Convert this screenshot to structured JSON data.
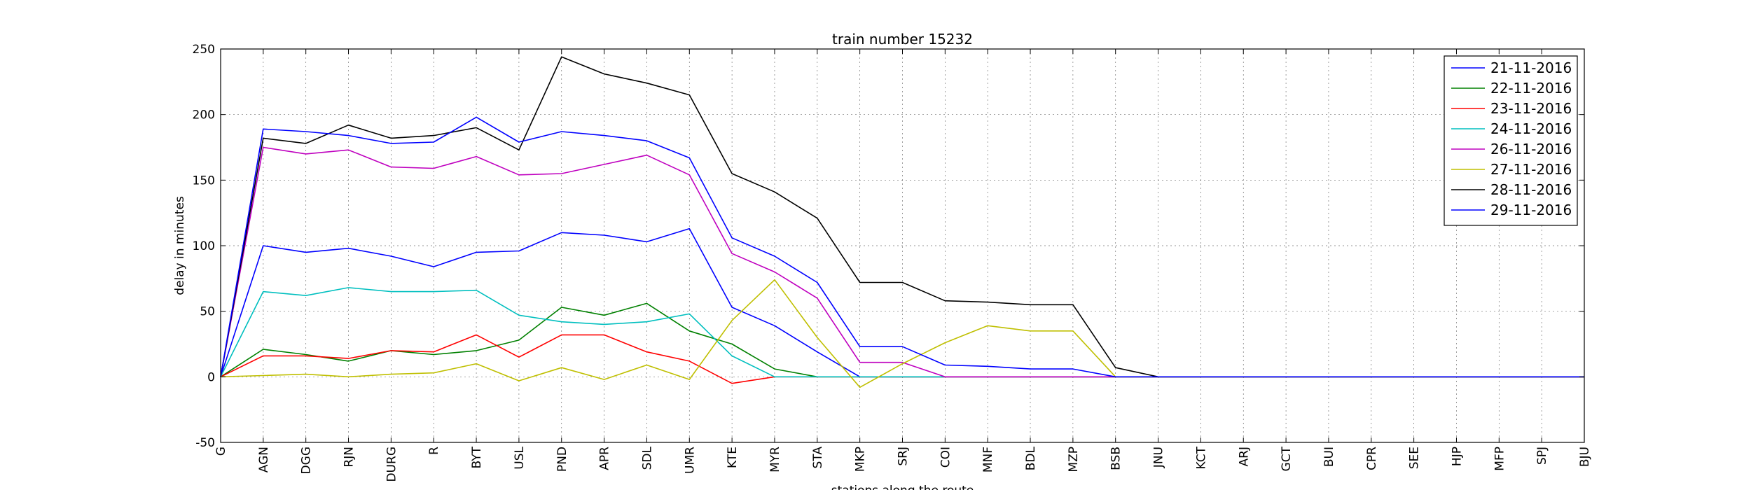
{
  "chart_data": {
    "type": "line",
    "title": "train number 15232",
    "xlabel": "stations along the route",
    "ylabel": "delay in minutes",
    "ylim": [
      -50,
      250
    ],
    "yticks": [
      -50,
      0,
      50,
      100,
      150,
      200,
      250
    ],
    "grid": true,
    "legend_position": "top-right",
    "categories": [
      "G",
      "AGN",
      "DGG",
      "RJN",
      "DURG",
      "R",
      "BYT",
      "USL",
      "PND",
      "APR",
      "SDL",
      "UMR",
      "KTE",
      "MYR",
      "STA",
      "MKP",
      "SRJ",
      "COI",
      "MNF",
      "BDL",
      "MZP",
      "BSB",
      "JNU",
      "KCT",
      "ARJ",
      "GCT",
      "BUI",
      "CPR",
      "SEE",
      "HJP",
      "MFP",
      "SPJ",
      "BJU"
    ],
    "series": [
      {
        "name": "21-11-2016",
        "color": "#0000ff",
        "values": [
          0,
          100,
          95,
          98,
          92,
          84,
          95,
          96,
          110,
          108,
          103,
          113,
          53,
          39,
          19,
          0,
          0,
          0,
          0,
          0,
          0,
          0,
          0,
          0,
          0,
          0,
          0,
          0,
          0,
          0,
          0,
          0,
          0
        ]
      },
      {
        "name": "22-11-2016",
        "color": "#008000",
        "values": [
          0,
          21,
          17,
          12,
          20,
          17,
          20,
          28,
          53,
          47,
          56,
          35,
          25,
          6,
          0,
          0,
          0,
          0,
          0,
          0,
          0,
          0,
          0,
          0,
          0,
          0,
          0,
          0,
          0,
          0,
          0,
          0,
          0
        ]
      },
      {
        "name": "23-11-2016",
        "color": "#ff0000",
        "values": [
          0,
          16,
          16,
          14,
          20,
          19,
          32,
          15,
          32,
          32,
          19,
          12,
          -5,
          0,
          0,
          0,
          0,
          0,
          0,
          0,
          0,
          0,
          0,
          0,
          0,
          0,
          0,
          0,
          0,
          0,
          0,
          0,
          0
        ]
      },
      {
        "name": "24-11-2016",
        "color": "#00bfbf",
        "values": [
          0,
          65,
          62,
          68,
          65,
          65,
          66,
          47,
          42,
          40,
          42,
          48,
          16,
          0,
          0,
          0,
          0,
          0,
          0,
          0,
          0,
          0,
          0,
          0,
          0,
          0,
          0,
          0,
          0,
          0,
          0,
          0,
          0
        ]
      },
      {
        "name": "26-11-2016",
        "color": "#bf00bf",
        "values": [
          0,
          175,
          170,
          173,
          160,
          159,
          168,
          154,
          155,
          162,
          169,
          154,
          94,
          80,
          60,
          11,
          11,
          0,
          0,
          0,
          0,
          0,
          0,
          0,
          0,
          0,
          0,
          0,
          0,
          0,
          0,
          0,
          0
        ]
      },
      {
        "name": "27-11-2016",
        "color": "#bfbf00",
        "values": [
          0,
          1,
          2,
          0,
          2,
          3,
          10,
          -3,
          7,
          -2,
          9,
          -2,
          43,
          74,
          30,
          -8,
          10,
          26,
          39,
          35,
          35,
          0,
          0,
          0,
          0,
          0,
          0,
          0,
          0,
          0,
          0,
          0,
          0
        ]
      },
      {
        "name": "28-11-2016",
        "color": "#000000",
        "values": [
          0,
          182,
          178,
          192,
          182,
          184,
          190,
          173,
          244,
          231,
          224,
          215,
          155,
          141,
          121,
          72,
          72,
          58,
          57,
          55,
          55,
          7,
          0,
          0,
          0,
          0,
          0,
          0,
          0,
          0,
          0,
          0,
          0
        ]
      },
      {
        "name": "29-11-2016",
        "color": "#0000ff",
        "values": [
          0,
          189,
          187,
          184,
          178,
          179,
          198,
          179,
          187,
          184,
          180,
          167,
          106,
          92,
          72,
          23,
          23,
          9,
          8,
          6,
          6,
          0,
          0,
          0,
          0,
          0,
          0,
          0,
          0,
          0,
          0,
          0,
          0
        ]
      }
    ]
  }
}
